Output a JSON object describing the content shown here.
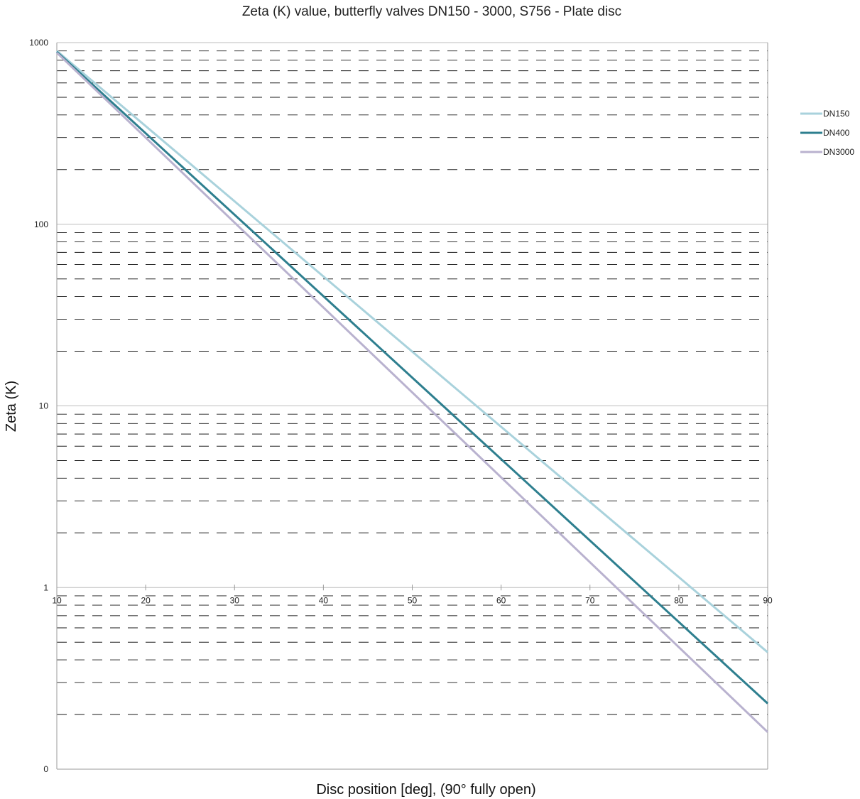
{
  "chart_data": {
    "type": "line",
    "title": "Zeta (K) value, butterfly valves DN150 - 3000, S756 - Plate disc",
    "xlabel": "Disc position [deg], (90° fully open)",
    "ylabel": "Zeta (K)",
    "x_scale": "linear",
    "y_scale": "log",
    "xlim": [
      10,
      90
    ],
    "ylim": [
      0.1,
      1000
    ],
    "x_ticks": [
      10,
      20,
      30,
      40,
      50,
      60,
      70,
      80,
      90
    ],
    "y_ticks": [
      {
        "value": 1000,
        "label": "1000"
      },
      {
        "value": 100,
        "label": "100"
      },
      {
        "value": 10,
        "label": "10"
      },
      {
        "value": 1,
        "label": "1"
      },
      {
        "value": 0.1,
        "label": "0"
      }
    ],
    "grid": {
      "major": "solid",
      "minor": "dashed"
    },
    "legend_position": "right",
    "series": [
      {
        "name": "DN150",
        "color": "#a9d2dc",
        "x": [
          10,
          90
        ],
        "y": [
          900,
          0.44
        ]
      },
      {
        "name": "DN400",
        "color": "#2e7f8f",
        "x": [
          10,
          90
        ],
        "y": [
          890,
          0.23
        ]
      },
      {
        "name": "DN3000",
        "color": "#b9b2cf",
        "x": [
          10,
          90
        ],
        "y": [
          880,
          0.16
        ]
      }
    ]
  }
}
